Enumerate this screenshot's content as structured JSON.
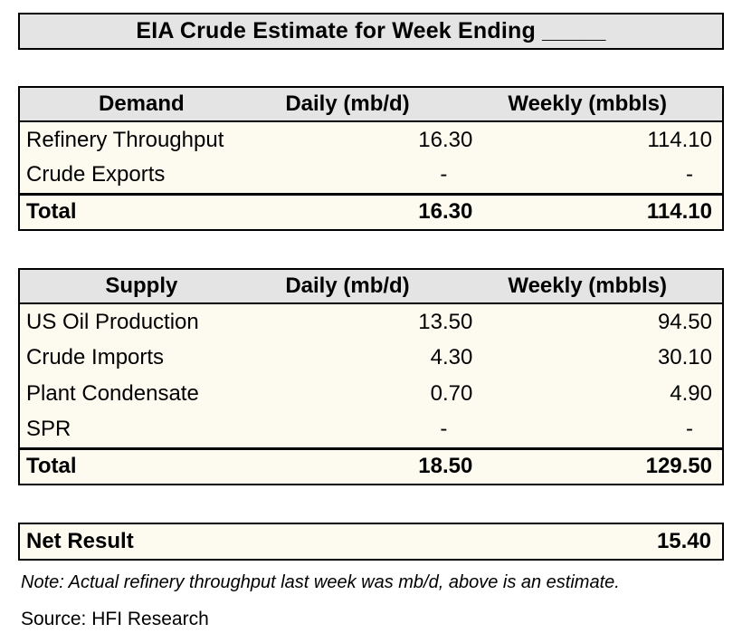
{
  "title": "EIA Crude Estimate for Week Ending _____",
  "columns": {
    "daily": "Daily (mb/d)",
    "weekly": "Weekly (mbbls)"
  },
  "demand_table": {
    "header": "Demand",
    "rows": [
      {
        "label": "Refinery Throughput",
        "daily": "16.30",
        "weekly": "114.10"
      },
      {
        "label": "Crude Exports",
        "daily": "-",
        "weekly": "-"
      }
    ],
    "total": {
      "label": "Total",
      "daily": "16.30",
      "weekly": "114.10"
    }
  },
  "supply_table": {
    "header": "Supply",
    "rows": [
      {
        "label": "US Oil Production",
        "daily": "13.50",
        "weekly": "94.50"
      },
      {
        "label": "Crude Imports",
        "daily": "4.30",
        "weekly": "30.10"
      },
      {
        "label": "Plant Condensate",
        "daily": "0.70",
        "weekly": "4.90"
      },
      {
        "label": "SPR",
        "daily": "-",
        "weekly": "-"
      }
    ],
    "total": {
      "label": "Total",
      "daily": "18.50",
      "weekly": "129.50"
    }
  },
  "net_result": {
    "label": "Net Result",
    "value": "15.40"
  },
  "note": "Note: Actual refinery throughput last week was mb/d, above is an estimate.",
  "source": "Source: HFI Research",
  "colors": {
    "header_bg": "#E4E4E4",
    "row_bg": "#FDFBEF",
    "border": "#000000",
    "page_bg": "#FFFFFF"
  }
}
